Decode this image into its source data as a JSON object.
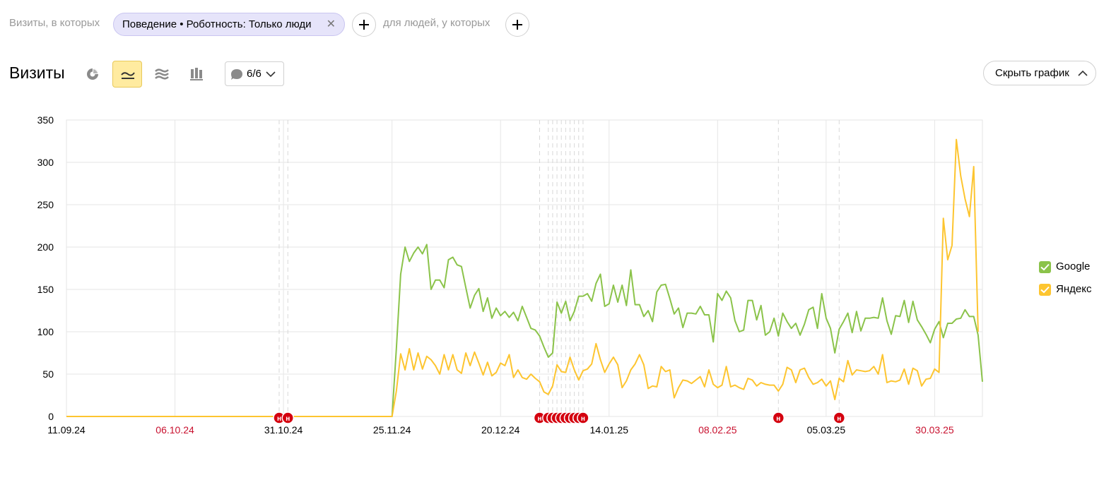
{
  "filter": {
    "visits_label": "Визиты, в которых",
    "chip_label": "Поведение • Роботность: Только люди",
    "people_label": "для людей, у которых"
  },
  "header": {
    "title": "Визиты",
    "comments_count": "6/6",
    "hide_chart_label": "Скрыть график"
  },
  "toolbar": {
    "icons": [
      "pie-chart-icon",
      "line-chart-icon",
      "area-chart-icon",
      "bar-chart-icon"
    ],
    "active": "line-chart-icon"
  },
  "colors": {
    "google": "#8bc34a",
    "yandex": "#fdc530",
    "annotation": "#d4000f",
    "grid": "#e6e6e6",
    "chip_bg": "#e6e4fa"
  },
  "chart_data": {
    "type": "line",
    "ylim": [
      0,
      350
    ],
    "yticks": [
      0,
      50,
      100,
      150,
      200,
      250,
      300,
      350
    ],
    "x_start": "11.09.24",
    "x_end": "10.04.25",
    "x_ticks": [
      {
        "label": "11.09.24",
        "date": "2024-09-11",
        "weekend": false
      },
      {
        "label": "06.10.24",
        "date": "2024-10-06",
        "weekend": true
      },
      {
        "label": "31.10.24",
        "date": "2024-10-31",
        "weekend": false
      },
      {
        "label": "25.11.24",
        "date": "2024-11-25",
        "weekend": false
      },
      {
        "label": "20.12.24",
        "date": "2024-12-20",
        "weekend": false
      },
      {
        "label": "14.01.25",
        "date": "2025-01-14",
        "weekend": false
      },
      {
        "label": "08.02.25",
        "date": "2025-02-08",
        "weekend": true
      },
      {
        "label": "05.03.25",
        "date": "2025-03-05",
        "weekend": false
      },
      {
        "label": "30.03.25",
        "date": "2025-03-30",
        "weekend": true
      }
    ],
    "annotation_marker": "н",
    "annotations": [
      "2024-10-30",
      "2024-11-01",
      "2024-12-29",
      "2024-12-31",
      "2025-01-01",
      "2025-01-02",
      "2025-01-03",
      "2025-01-04",
      "2025-01-05",
      "2025-01-06",
      "2025-01-07",
      "2025-01-08",
      "2025-02-22",
      "2025-03-08"
    ],
    "series": [
      {
        "name": "Google",
        "start_date": "2024-11-25",
        "values": [
          0,
          80,
          168,
          200,
          183,
          193,
          200,
          192,
          203,
          150,
          161,
          161,
          152,
          185,
          188,
          179,
          177,
          152,
          128,
          143,
          151,
          124,
          140,
          116,
          128,
          119,
          124,
          117,
          123,
          113,
          130,
          117,
          104,
          102,
          95,
          82,
          70,
          75,
          135,
          122,
          136,
          113,
          124,
          142,
          142,
          145,
          136,
          157,
          168,
          130,
          133,
          155,
          135,
          155,
          131,
          173,
          132,
          132,
          118,
          125,
          112,
          147,
          155,
          156,
          139,
          121,
          128,
          105,
          122,
          122,
          121,
          130,
          120,
          120,
          88,
          145,
          137,
          148,
          140,
          113,
          100,
          102,
          137,
          137,
          114,
          131,
          96,
          100,
          116,
          95,
          122,
          112,
          104,
          110,
          96,
          109,
          126,
          129,
          104,
          145,
          116,
          104,
          75,
          103,
          112,
          122,
          99,
          124,
          101,
          116,
          116,
          117,
          116,
          140,
          113,
          97,
          119,
          118,
          137,
          111,
          136,
          114,
          106,
          97,
          87,
          103,
          112,
          93,
          110,
          110,
          115,
          116,
          126,
          118,
          118,
          96,
          41
        ]
      },
      {
        "name": "Яндекс",
        "start_date": "2024-11-25",
        "values": [
          0,
          30,
          74,
          55,
          80,
          55,
          75,
          56,
          71,
          67,
          60,
          50,
          73,
          55,
          73,
          55,
          51,
          75,
          60,
          76,
          63,
          49,
          64,
          48,
          52,
          63,
          60,
          73,
          46,
          55,
          46,
          44,
          50,
          45,
          41,
          29,
          26,
          36,
          61,
          53,
          52,
          70,
          55,
          43,
          54,
          56,
          62,
          86,
          67,
          52,
          62,
          70,
          61,
          34,
          42,
          55,
          62,
          73,
          61,
          33,
          36,
          35,
          59,
          53,
          55,
          22,
          34,
          43,
          42,
          39,
          43,
          47,
          35,
          55,
          38,
          34,
          37,
          59,
          35,
          37,
          34,
          32,
          45,
          43,
          36,
          40,
          38,
          37,
          37,
          30,
          38,
          58,
          55,
          40,
          55,
          57,
          46,
          38,
          40,
          44,
          36,
          42,
          20,
          45,
          41,
          66,
          49,
          55,
          54,
          53,
          54,
          59,
          50,
          73,
          40,
          42,
          41,
          43,
          56,
          38,
          57,
          54,
          36,
          44,
          45,
          56,
          52,
          234,
          185,
          202,
          327,
          284,
          257,
          236,
          295,
          100
        ]
      }
    ]
  }
}
